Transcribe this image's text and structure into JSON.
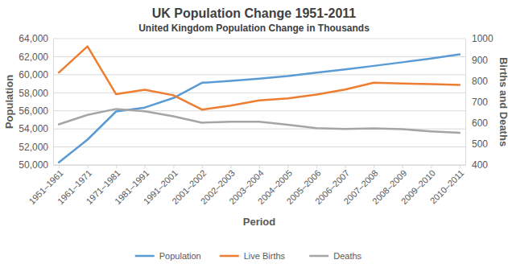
{
  "chart_data": {
    "type": "line",
    "title": "UK Population Change 1951-2011",
    "subtitle": "United Kingdom Population Change in Thousands",
    "x_label": "Period",
    "y_label": "Population",
    "y2_label": "Births and Deaths",
    "categories": [
      "1951–1961",
      "1961–1971",
      "1971–1981",
      "1981–1991",
      "1991–2001",
      "2001–2002",
      "2002–2003",
      "2003–2004",
      "2004–2005",
      "2005–2006",
      "2006–2007",
      "2007–2008",
      "2008–2009",
      "2009–2010",
      "2010–2011"
    ],
    "series": [
      {
        "name": "Population",
        "color": "#5b9bd5",
        "values": [
          50290,
          52810,
          55930,
          56360,
          57420,
          59110,
          59320,
          59560,
          59850,
          60240,
          60590,
          60980,
          61380,
          61790,
          62260
        ]
      },
      {
        "name": "Live Births",
        "color": "#ed7d31",
        "axis": "y2",
        "values": [
          839,
          963,
          736,
          757,
          731,
          663,
          682,
          707,
          716,
          734,
          758,
          791,
          787,
          784,
          780
        ]
      },
      {
        "name": "Deaths",
        "color": "#a5a5a5",
        "axis": "y2",
        "values": [
          593,
          638,
          666,
          655,
          631,
          601,
          605,
          605,
          591,
          575,
          571,
          574,
          570,
          560,
          553
        ]
      }
    ],
    "ylim": [
      50000,
      64000
    ],
    "yticks": [
      {
        "value": 50000,
        "label": "50,000"
      },
      {
        "value": 52000,
        "label": "52,000"
      },
      {
        "value": 54000,
        "label": "54,000"
      },
      {
        "value": 56000,
        "label": "56,000"
      },
      {
        "value": 58000,
        "label": "58,000"
      },
      {
        "value": 60000,
        "label": "60,000"
      },
      {
        "value": 62000,
        "label": "62,000"
      },
      {
        "value": 64000,
        "label": "64,000"
      }
    ],
    "y2lim": [
      400,
      1000
    ],
    "y2ticks": [
      400,
      500,
      600,
      700,
      800,
      900,
      1000
    ],
    "grid": true,
    "legend": "bottom"
  }
}
